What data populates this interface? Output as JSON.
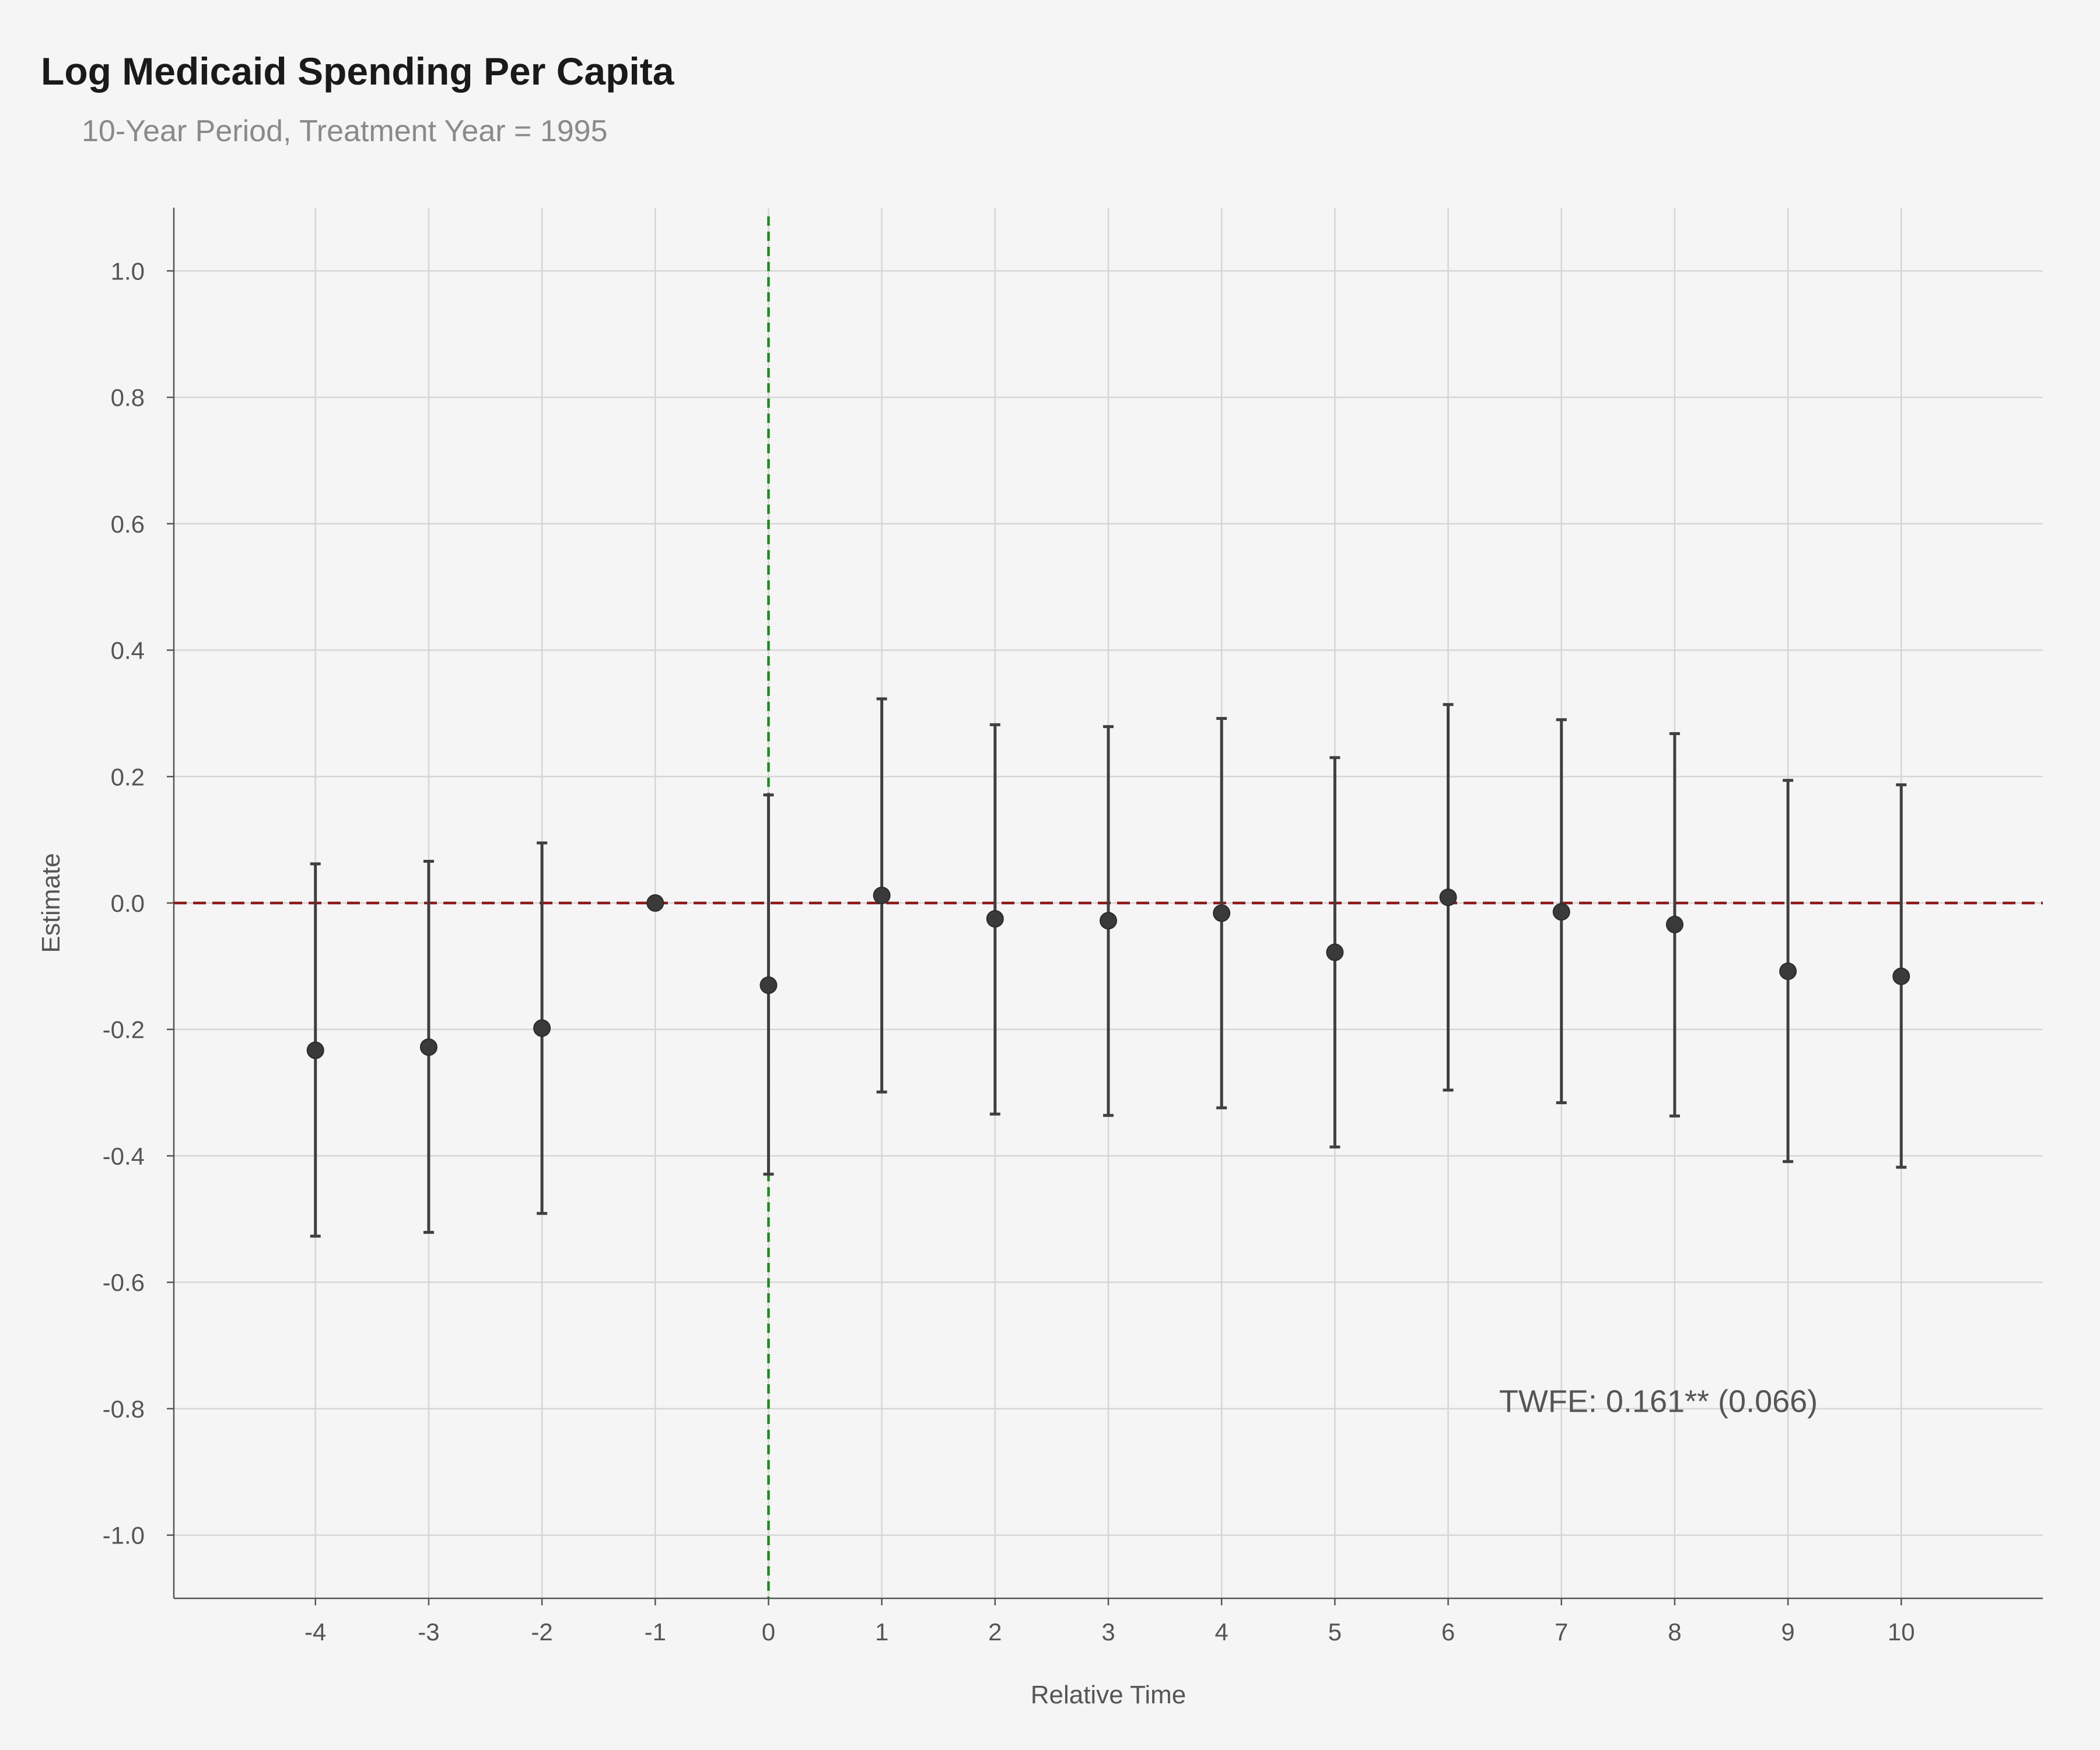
{
  "chart_data": {
    "type": "scatter",
    "title": "Log Medicaid Spending Per Capita",
    "subtitle": "10-Year Period, Treatment Year = 1995",
    "xlabel": "Relative Time",
    "ylabel": "Estimate",
    "xlim": [
      -5.25,
      11.25
    ],
    "ylim": [
      -1.1,
      1.1
    ],
    "x_ticks": [
      -4,
      -3,
      -2,
      -1,
      0,
      1,
      2,
      3,
      4,
      5,
      6,
      7,
      8,
      9,
      10
    ],
    "y_ticks": [
      -1.0,
      -0.8,
      -0.6,
      -0.4,
      -0.2,
      0.0,
      0.2,
      0.4,
      0.6,
      0.8,
      1.0
    ],
    "grid": true,
    "series": [
      {
        "x": [
          -4,
          -3,
          -2,
          -1,
          0,
          1,
          2,
          3,
          4,
          5,
          6,
          7,
          8,
          9,
          10
        ],
        "estimate": [
          -0.233,
          -0.228,
          -0.198,
          0.0,
          -0.13,
          0.012,
          -0.025,
          -0.028,
          -0.016,
          -0.078,
          0.009,
          -0.014,
          -0.034,
          -0.108,
          -0.116
        ],
        "ci_lower": [
          -0.527,
          -0.521,
          -0.491,
          0.0,
          -0.429,
          -0.299,
          -0.334,
          -0.336,
          -0.324,
          -0.386,
          -0.296,
          -0.316,
          -0.337,
          -0.409,
          -0.418
        ],
        "ci_upper": [
          0.062,
          0.066,
          0.095,
          0.0,
          0.171,
          0.323,
          0.282,
          0.279,
          0.292,
          0.23,
          0.314,
          0.29,
          0.268,
          0.194,
          0.187
        ]
      }
    ],
    "reference_lines": {
      "horizontal_y": 0,
      "horizontal_color": "#8b1a1a",
      "vertical_x": 0,
      "vertical_color": "#1f8a1f"
    },
    "annotation": {
      "text": "TWFE: 0.161** (0.066)",
      "x": 6.45,
      "y": -0.805
    },
    "colors": {
      "background": "#f5f5f5",
      "points": "#3a3a3a",
      "grid": "#d6d6d6"
    }
  }
}
